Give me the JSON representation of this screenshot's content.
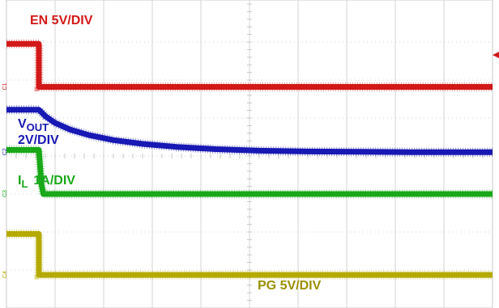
{
  "chart_data": {
    "type": "line",
    "title": "",
    "xlabel": "",
    "ylabel": "",
    "grid": true,
    "divisions": {
      "x": 10,
      "y": 8
    },
    "xlim": [
      0,
      10
    ],
    "ylim": [
      0,
      8
    ],
    "series": [
      {
        "name": "EN 5V/DIV",
        "key": "en",
        "label_main": "EN 5V/DIV",
        "label_sub": "",
        "label_suffix": "",
        "color": "#d21818",
        "channel_marker": "C1",
        "x": [
          0,
          0.667,
          0.667,
          10
        ],
        "y": [
          6.95,
          6.95,
          5.82,
          5.82
        ]
      },
      {
        "name": "VOUT 2V/DIV",
        "key": "vout",
        "label_main": "V",
        "label_sub": "OUT",
        "label_suffix": "2V/DIV",
        "color": "#1818b4",
        "channel_marker": "C2",
        "x": [
          0,
          0.667,
          0.8,
          1.0,
          1.3,
          1.7,
          2.2,
          2.8,
          3.5,
          4.3,
          5.2,
          6.2,
          7.3,
          8.5,
          10
        ],
        "y": [
          5.22,
          5.22,
          5.05,
          4.87,
          4.7,
          4.55,
          4.42,
          4.32,
          4.24,
          4.18,
          4.14,
          4.12,
          4.11,
          4.1,
          4.1
        ]
      },
      {
        "name": "IL 1A/DIV",
        "key": "il",
        "label_main": "I",
        "label_sub": "L",
        "label_suffix": "1A/DIV",
        "color": "#18a818",
        "channel_marker": "C3",
        "x": [
          0,
          0.667,
          0.72,
          0.76,
          10
        ],
        "y": [
          4.16,
          4.16,
          3.25,
          3.0,
          3.0
        ]
      },
      {
        "name": "PG 5V/DIV",
        "key": "pg",
        "label_main": "PG 5V/DIV",
        "label_sub": "",
        "label_suffix": "",
        "color": "#b4aa00",
        "channel_marker": "C4",
        "x": [
          0,
          0.667,
          0.667,
          10
        ],
        "y": [
          1.95,
          1.95,
          0.87,
          0.87
        ]
      }
    ]
  }
}
